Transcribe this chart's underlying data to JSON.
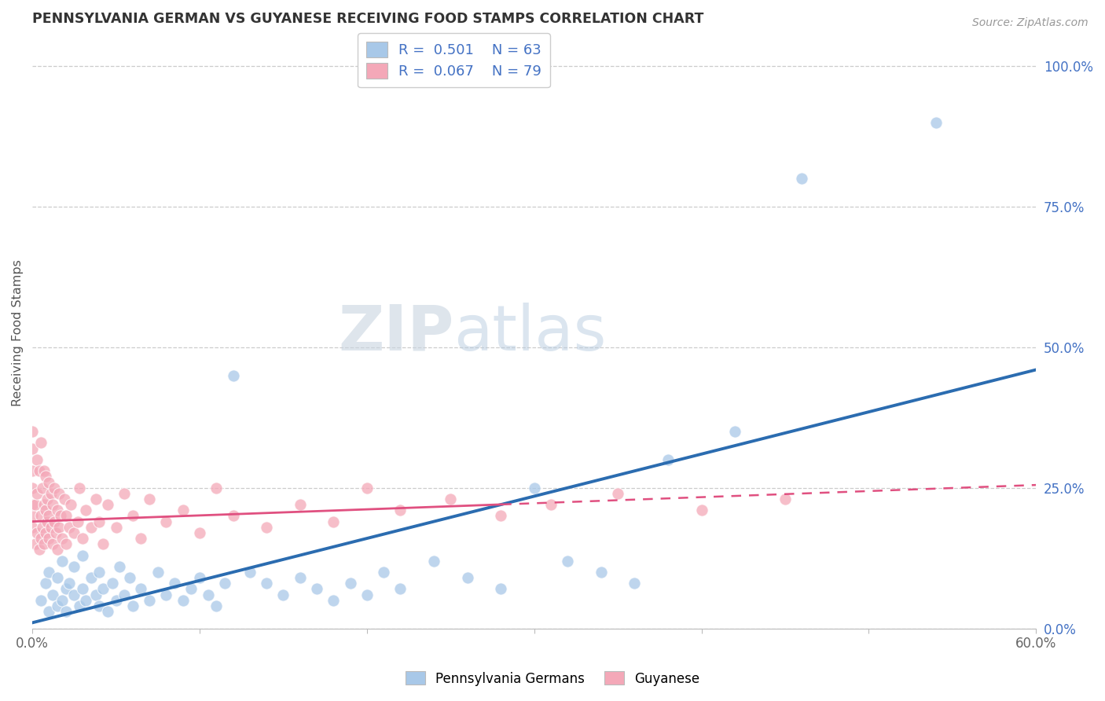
{
  "title": "PENNSYLVANIA GERMAN VS GUYANESE RECEIVING FOOD STAMPS CORRELATION CHART",
  "source": "Source: ZipAtlas.com",
  "ylabel": "Receiving Food Stamps",
  "xmin": 0.0,
  "xmax": 0.6,
  "ymin": 0.0,
  "ymax": 1.05,
  "xticks": [
    0.0,
    0.1,
    0.2,
    0.3,
    0.4,
    0.5,
    0.6
  ],
  "xtick_labels": [
    "0.0%",
    "",
    "",
    "",
    "",
    "",
    "60.0%"
  ],
  "ytick_labels_right": [
    "100.0%",
    "75.0%",
    "50.0%",
    "25.0%",
    "0.0%"
  ],
  "ytick_positions_right": [
    1.0,
    0.75,
    0.5,
    0.25,
    0.0
  ],
  "legend_r1": "R =  0.501    N = 63",
  "legend_r2": "R =  0.067    N = 79",
  "blue_color": "#a8c8e8",
  "pink_color": "#f4a8b8",
  "blue_line_color": "#2b6cb0",
  "pink_line_color": "#e05080",
  "watermark_zip": "ZIP",
  "watermark_atlas": "atlas",
  "blue_scatter_x": [
    0.005,
    0.008,
    0.01,
    0.01,
    0.012,
    0.015,
    0.015,
    0.018,
    0.018,
    0.02,
    0.02,
    0.022,
    0.025,
    0.025,
    0.028,
    0.03,
    0.03,
    0.032,
    0.035,
    0.038,
    0.04,
    0.04,
    0.042,
    0.045,
    0.048,
    0.05,
    0.052,
    0.055,
    0.058,
    0.06,
    0.065,
    0.07,
    0.075,
    0.08,
    0.085,
    0.09,
    0.095,
    0.1,
    0.105,
    0.11,
    0.115,
    0.12,
    0.13,
    0.14,
    0.15,
    0.16,
    0.17,
    0.18,
    0.19,
    0.2,
    0.21,
    0.22,
    0.24,
    0.26,
    0.28,
    0.3,
    0.32,
    0.34,
    0.36,
    0.38,
    0.42,
    0.46,
    0.54
  ],
  "blue_scatter_y": [
    0.05,
    0.08,
    0.03,
    0.1,
    0.06,
    0.04,
    0.09,
    0.05,
    0.12,
    0.07,
    0.03,
    0.08,
    0.06,
    0.11,
    0.04,
    0.07,
    0.13,
    0.05,
    0.09,
    0.06,
    0.04,
    0.1,
    0.07,
    0.03,
    0.08,
    0.05,
    0.11,
    0.06,
    0.09,
    0.04,
    0.07,
    0.05,
    0.1,
    0.06,
    0.08,
    0.05,
    0.07,
    0.09,
    0.06,
    0.04,
    0.08,
    0.45,
    0.1,
    0.08,
    0.06,
    0.09,
    0.07,
    0.05,
    0.08,
    0.06,
    0.1,
    0.07,
    0.12,
    0.09,
    0.07,
    0.25,
    0.12,
    0.1,
    0.08,
    0.3,
    0.35,
    0.8,
    0.9
  ],
  "pink_scatter_x": [
    0.0,
    0.0,
    0.0,
    0.0,
    0.0,
    0.0,
    0.0,
    0.002,
    0.002,
    0.003,
    0.003,
    0.003,
    0.004,
    0.004,
    0.005,
    0.005,
    0.005,
    0.006,
    0.006,
    0.007,
    0.007,
    0.007,
    0.008,
    0.008,
    0.008,
    0.009,
    0.009,
    0.01,
    0.01,
    0.01,
    0.011,
    0.011,
    0.012,
    0.012,
    0.013,
    0.013,
    0.014,
    0.015,
    0.015,
    0.016,
    0.016,
    0.017,
    0.018,
    0.019,
    0.02,
    0.02,
    0.022,
    0.023,
    0.025,
    0.027,
    0.028,
    0.03,
    0.032,
    0.035,
    0.038,
    0.04,
    0.042,
    0.045,
    0.05,
    0.055,
    0.06,
    0.065,
    0.07,
    0.08,
    0.09,
    0.1,
    0.11,
    0.12,
    0.14,
    0.16,
    0.18,
    0.2,
    0.22,
    0.25,
    0.28,
    0.31,
    0.35,
    0.4,
    0.45
  ],
  "pink_scatter_y": [
    0.18,
    0.2,
    0.22,
    0.25,
    0.28,
    0.32,
    0.35,
    0.15,
    0.22,
    0.17,
    0.24,
    0.3,
    0.14,
    0.28,
    0.16,
    0.2,
    0.33,
    0.18,
    0.25,
    0.15,
    0.22,
    0.28,
    0.17,
    0.21,
    0.27,
    0.19,
    0.23,
    0.16,
    0.2,
    0.26,
    0.18,
    0.24,
    0.15,
    0.22,
    0.19,
    0.25,
    0.17,
    0.14,
    0.21,
    0.18,
    0.24,
    0.2,
    0.16,
    0.23,
    0.15,
    0.2,
    0.18,
    0.22,
    0.17,
    0.19,
    0.25,
    0.16,
    0.21,
    0.18,
    0.23,
    0.19,
    0.15,
    0.22,
    0.18,
    0.24,
    0.2,
    0.16,
    0.23,
    0.19,
    0.21,
    0.17,
    0.25,
    0.2,
    0.18,
    0.22,
    0.19,
    0.25,
    0.21,
    0.23,
    0.2,
    0.22,
    0.24,
    0.21,
    0.23
  ]
}
